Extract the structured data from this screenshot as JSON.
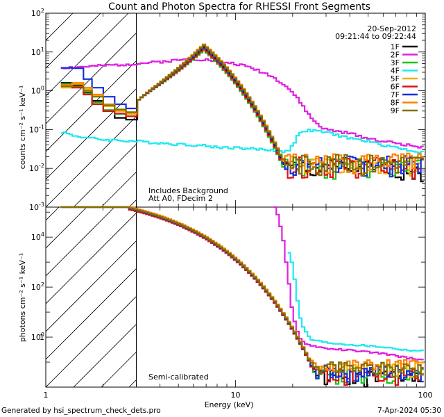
{
  "chart_data": {
    "type": "line",
    "title": "Count and Photon Spectra for RHESSI Front Segments",
    "date": "20-Sep-2012",
    "time_range": "09:21:44 to 09:22:44",
    "xlabel": "Energy (keV)",
    "xlim": [
      1,
      100
    ],
    "xticks": [
      {
        "value": 1,
        "label": "1"
      },
      {
        "value": 10,
        "label": "10"
      },
      {
        "value": 100,
        "label": "100"
      }
    ],
    "attenuator_cutoff_keV": 3,
    "footer_left": "Generated by hsi_spectrum_check_dets.pro",
    "footer_right": "7-Apr-2024 05:30",
    "panels": [
      {
        "id": "counts",
        "ylabel": "counts cm⁻² s⁻¹ keV⁻¹",
        "ylim_exp": [
          -3,
          2
        ],
        "yticks": [
          {
            "base": "10",
            "exp": "2"
          },
          {
            "base": "10",
            "exp": "1"
          },
          {
            "base": "10",
            "exp": "0"
          },
          {
            "base": "10",
            "exp": "-1"
          },
          {
            "base": "10",
            "exp": "-2"
          },
          {
            "base": "10",
            "exp": "-3"
          }
        ],
        "annotations": [
          "Includes Background",
          "Att A0, FDecim 2"
        ]
      },
      {
        "id": "photons",
        "ylabel": "photons cm⁻² s⁻¹ keV⁻¹",
        "ylim_exp": [
          -2,
          5.2
        ],
        "yticks": [
          {
            "base": "10",
            "exp": "4"
          },
          {
            "base": "10",
            "exp": "2"
          },
          {
            "base": "1",
            "exp": ""
          },
          {
            "base": "10",
            "exp": "0"
          }
        ],
        "annotations": [
          "Semi-calibrated"
        ]
      }
    ],
    "series": [
      {
        "name": "1F",
        "color": "#000000",
        "seed": 1,
        "counts": {
          "low": [
            1.6,
            1.4,
            0.9,
            0.55,
            0.3,
            0.2,
            0.18
          ],
          "peak": 13,
          "tail": 0.0045
        },
        "photons": {
          "scale": 1.0,
          "tail": 0.009
        }
      },
      {
        "name": "2F",
        "color": "#e020e0",
        "seed": 2,
        "counts": [
          [
            1.2,
            3.9
          ],
          [
            1.5,
            4.1
          ],
          [
            2,
            4.4
          ],
          [
            3,
            5.0
          ],
          [
            4,
            5.6
          ],
          [
            5,
            6.2
          ],
          [
            6,
            6.6
          ],
          [
            7,
            6.4
          ],
          [
            8,
            5.8
          ],
          [
            10,
            5.0
          ],
          [
            12,
            4.0
          ],
          [
            15,
            2.6
          ],
          [
            18,
            1.5
          ],
          [
            20,
            0.9
          ],
          [
            22,
            0.5
          ],
          [
            25,
            0.2
          ],
          [
            28,
            0.12
          ],
          [
            30,
            0.1
          ],
          [
            40,
            0.08
          ],
          [
            50,
            0.06
          ],
          [
            60,
            0.05
          ],
          [
            70,
            0.045
          ],
          [
            80,
            0.04
          ],
          [
            100,
            0.035
          ]
        ],
        "photons": [
          [
            16,
            250000
          ],
          [
            17,
            50000
          ],
          [
            18,
            5000
          ],
          [
            19,
            200
          ],
          [
            20,
            8
          ],
          [
            21,
            2
          ],
          [
            22,
            0.8
          ],
          [
            24,
            0.5
          ],
          [
            30,
            0.35
          ],
          [
            40,
            0.3
          ],
          [
            60,
            0.22
          ],
          [
            80,
            0.15
          ],
          [
            100,
            0.12
          ]
        ]
      },
      {
        "name": "3F",
        "color": "#20c020",
        "seed": 3,
        "counts": {
          "low": [
            1.5,
            1.3,
            0.85,
            0.5,
            0.32,
            0.25,
            0.22
          ],
          "peak": 11,
          "tail": 0.005
        },
        "photons": {
          "scale": 0.95,
          "tail": 0.012
        }
      },
      {
        "name": "4F",
        "color": "#20e8f0",
        "seed": 4,
        "counts": [
          [
            1.2,
            0.09
          ],
          [
            1.4,
            0.07
          ],
          [
            1.7,
            0.06
          ],
          [
            2,
            0.055
          ],
          [
            3,
            0.05
          ],
          [
            4,
            0.045
          ],
          [
            5,
            0.042
          ],
          [
            6,
            0.04
          ],
          [
            7,
            0.038
          ],
          [
            8,
            0.035
          ],
          [
            10,
            0.034
          ],
          [
            12,
            0.032
          ],
          [
            15,
            0.03
          ],
          [
            17,
            0.028
          ],
          [
            19,
            0.027
          ],
          [
            20,
            0.04
          ],
          [
            21,
            0.06
          ],
          [
            22,
            0.09
          ],
          [
            25,
            0.095
          ],
          [
            30,
            0.085
          ],
          [
            40,
            0.06
          ],
          [
            50,
            0.05
          ],
          [
            60,
            0.04
          ],
          [
            70,
            0.035
          ],
          [
            80,
            0.03
          ],
          [
            100,
            0.025
          ]
        ],
        "photons": [
          [
            18.5,
            5000
          ],
          [
            19,
            3000
          ],
          [
            20,
            800
          ],
          [
            21,
            50
          ],
          [
            22,
            5
          ],
          [
            23,
            2
          ],
          [
            25,
            0.8
          ],
          [
            30,
            0.6
          ],
          [
            40,
            0.5
          ],
          [
            60,
            0.4
          ],
          [
            80,
            0.3
          ],
          [
            100,
            0.28
          ]
        ]
      },
      {
        "name": "5F",
        "color": "#f0b000",
        "seed": 5,
        "counts": {
          "low": [
            1.2,
            1.5,
            1.1,
            0.75,
            0.4,
            0.3,
            0.25
          ],
          "peak": 15,
          "tail": 0.006
        },
        "photons": {
          "scale": 1.1,
          "tail": 0.02
        }
      },
      {
        "name": "6F",
        "color": "#e01010",
        "seed": 6,
        "counts": {
          "low": [
            1.35,
            1.2,
            0.8,
            0.45,
            0.3,
            0.26,
            0.22
          ],
          "peak": 12,
          "tail": 0.0055
        },
        "photons": {
          "scale": 0.9,
          "tail": 0.012
        }
      },
      {
        "name": "7F",
        "color": "#1030e0",
        "seed": 7,
        "counts": {
          "low": [
            3.9,
            3.8,
            2.0,
            1.2,
            0.7,
            0.45,
            0.35
          ],
          "peak": 14,
          "tail": 0.006
        },
        "photons": {
          "scale": 1.0,
          "tail": 0.015
        }
      },
      {
        "name": "8F",
        "color": "#ff8000",
        "seed": 8,
        "counts": {
          "low": [
            1.4,
            1.6,
            1.2,
            0.8,
            0.45,
            0.32,
            0.27
          ],
          "peak": 16,
          "tail": 0.007
        },
        "photons": {
          "scale": 1.15,
          "tail": 0.025
        }
      },
      {
        "name": "9F",
        "color": "#807000",
        "seed": 9,
        "counts": {
          "low": [
            1.3,
            1.3,
            1.0,
            0.7,
            0.42,
            0.33,
            0.28
          ],
          "peak": 15,
          "tail": 0.0065
        },
        "photons": {
          "scale": 1.05,
          "tail": 0.02
        }
      }
    ]
  }
}
